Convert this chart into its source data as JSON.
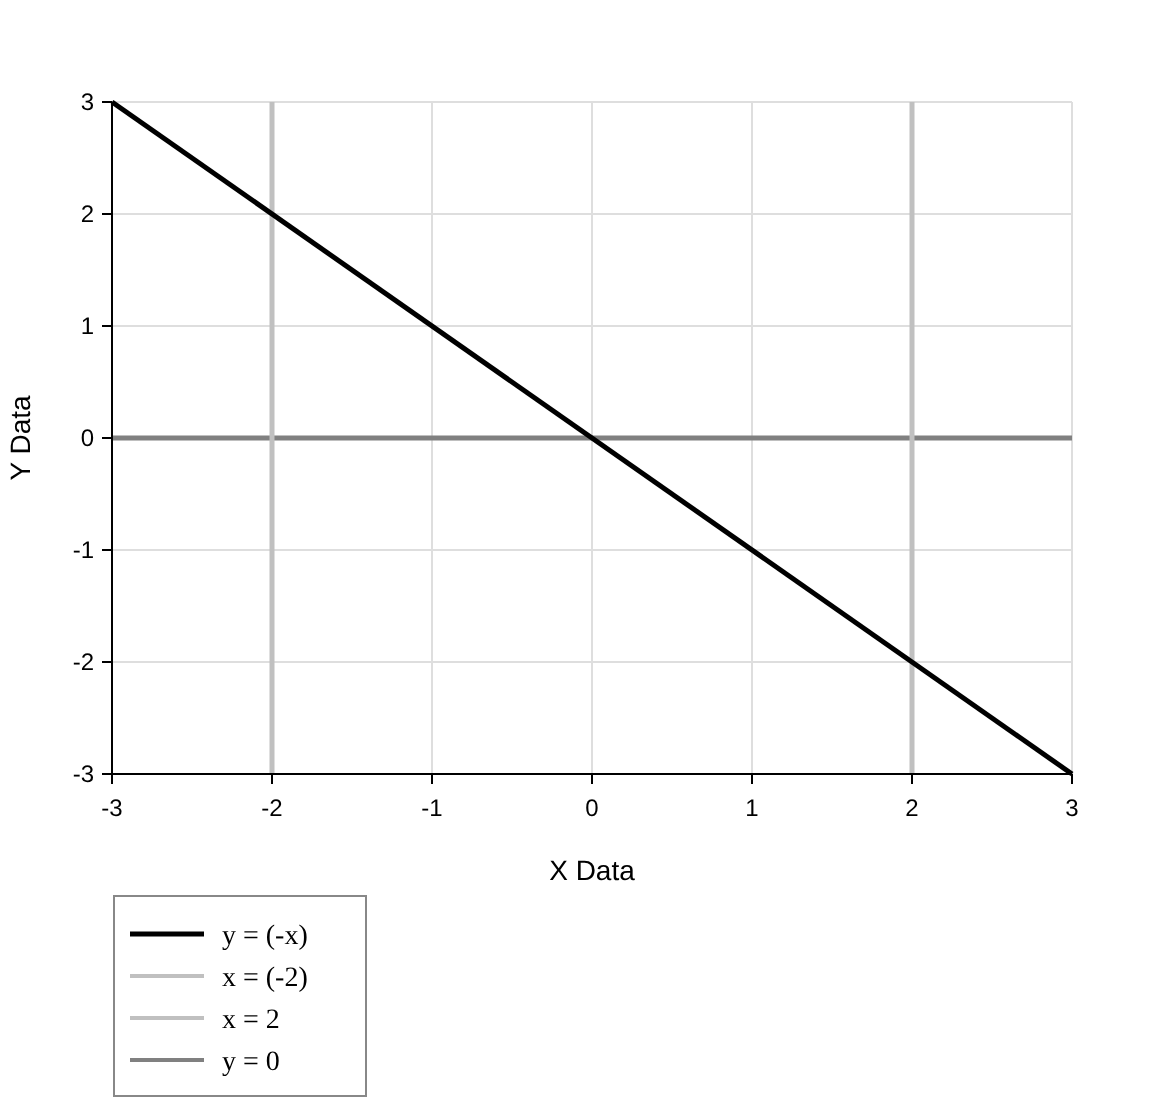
{
  "chart_data": {
    "type": "line",
    "xlabel": "X Data",
    "ylabel": "Y Data",
    "xlim": [
      -3,
      3
    ],
    "ylim": [
      -3,
      3
    ],
    "xticks": [
      -3,
      -2,
      -1,
      0,
      1,
      2,
      3
    ],
    "yticks": [
      -3,
      -2,
      -1,
      0,
      1,
      2,
      3
    ],
    "grid": true,
    "legend": "bottom left",
    "series": [
      {
        "name": "y = (-x)",
        "color": "#000000",
        "x": [
          -3,
          3
        ],
        "values": [
          3,
          -3
        ]
      },
      {
        "name": "x = (-2)",
        "color": "#c0c0c0",
        "x": [
          -2,
          -2
        ],
        "values": [
          -3,
          3
        ]
      },
      {
        "name": "x = 2",
        "color": "#c0c0c0",
        "x": [
          2,
          2
        ],
        "values": [
          -3,
          3
        ]
      },
      {
        "name": "y = 0",
        "color": "#808080",
        "x": [
          -3,
          3
        ],
        "values": [
          0,
          0
        ]
      }
    ]
  }
}
